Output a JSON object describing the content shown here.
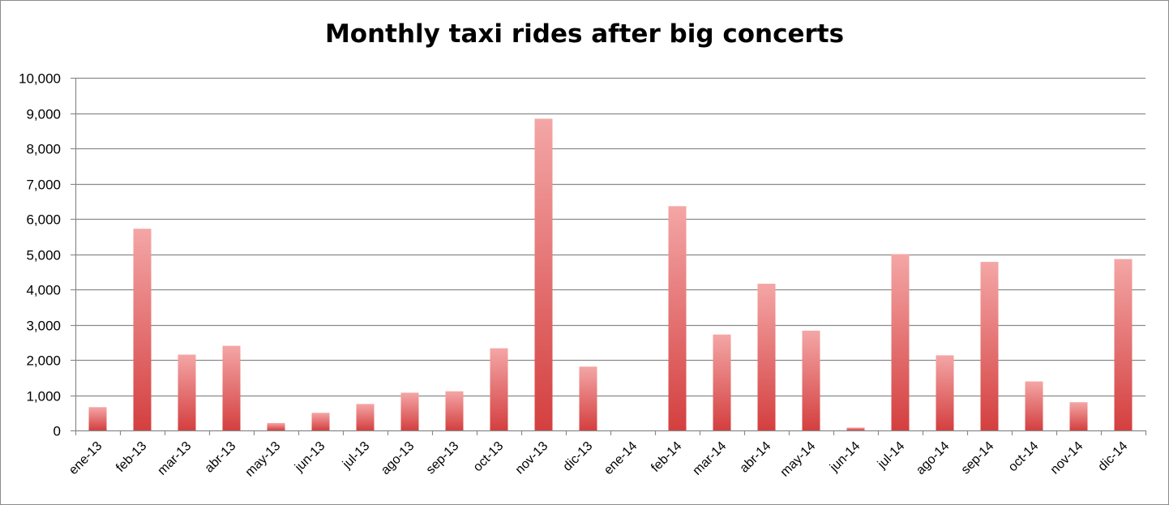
{
  "chart_data": {
    "type": "bar",
    "title": "Monthly taxi rides after big concerts",
    "xlabel": "",
    "ylabel": "",
    "ylim": [
      0,
      10000
    ],
    "yticks": [
      0,
      1000,
      2000,
      3000,
      4000,
      5000,
      6000,
      7000,
      8000,
      9000,
      10000
    ],
    "ytick_labels": [
      "0",
      "1,000",
      "2,000",
      "3,000",
      "4,000",
      "5,000",
      "6,000",
      "7,000",
      "8,000",
      "9,000",
      "10,000"
    ],
    "grid": true,
    "legend": "none",
    "categories": [
      "ene-13",
      "feb-13",
      "mar-13",
      "abr-13",
      "may-13",
      "jun-13",
      "jul-13",
      "ago-13",
      "sep-13",
      "oct-13",
      "nov-13",
      "dic-13",
      "ene-14",
      "feb-14",
      "mar-14",
      "abr-14",
      "may-14",
      "jun-14",
      "jul-14",
      "ago-14",
      "sep-14",
      "oct-14",
      "nov-14",
      "dic-14"
    ],
    "values": [
      660,
      5720,
      2150,
      2400,
      210,
      500,
      750,
      1070,
      1110,
      2330,
      8840,
      1810,
      0,
      6360,
      2720,
      4160,
      2830,
      80,
      5000,
      2130,
      4780,
      1390,
      800,
      4860
    ],
    "bar_color_top": "#f4a6a6",
    "bar_color_bottom": "#d43f3f"
  }
}
